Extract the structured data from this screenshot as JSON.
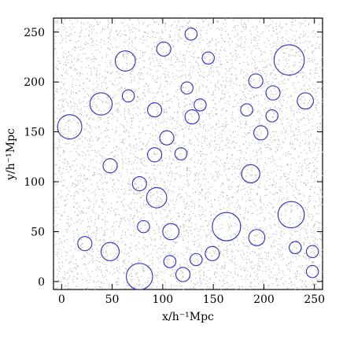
{
  "chart_data": {
    "type": "scatter",
    "title": "",
    "xlabel": "x/h⁻¹Mpc",
    "ylabel": "y/h⁻¹Mpc",
    "xlim": [
      -8,
      258
    ],
    "ylim": [
      -8,
      264
    ],
    "x_ticks": [
      0,
      50,
      100,
      150,
      200,
      250
    ],
    "y_ticks": [
      0,
      50,
      100,
      150,
      200,
      250
    ],
    "x_tick_labels": [
      "0",
      "50",
      "100",
      "150",
      "200",
      "250"
    ],
    "y_tick_labels": [
      "0",
      "50",
      "100",
      "150",
      "200",
      "250"
    ],
    "grid": false,
    "legend": false,
    "colors": {
      "galaxies": "#b3b3b3",
      "voids": "#2c2cc8",
      "axes": "#000000"
    },
    "series": [
      {
        "type": "circles",
        "points": [
          {
            "x": 128,
            "y": 248,
            "r": 6
          },
          {
            "x": 101,
            "y": 233,
            "r": 7
          },
          {
            "x": 145,
            "y": 224,
            "r": 6
          },
          {
            "x": 63,
            "y": 221,
            "r": 10
          },
          {
            "x": 225,
            "y": 222,
            "r": 15
          },
          {
            "x": 192,
            "y": 201,
            "r": 7
          },
          {
            "x": 124,
            "y": 194,
            "r": 6
          },
          {
            "x": 66,
            "y": 186,
            "r": 6
          },
          {
            "x": 209,
            "y": 189,
            "r": 7
          },
          {
            "x": 39,
            "y": 178,
            "r": 11
          },
          {
            "x": 241,
            "y": 181,
            "r": 8
          },
          {
            "x": 137,
            "y": 177,
            "r": 6
          },
          {
            "x": 92,
            "y": 172,
            "r": 7
          },
          {
            "x": 183,
            "y": 172,
            "r": 6
          },
          {
            "x": 208,
            "y": 166,
            "r": 6
          },
          {
            "x": 129,
            "y": 165,
            "r": 7
          },
          {
            "x": 8,
            "y": 155,
            "r": 12
          },
          {
            "x": 197,
            "y": 149,
            "r": 7
          },
          {
            "x": 104,
            "y": 144,
            "r": 7
          },
          {
            "x": 92,
            "y": 127,
            "r": 7
          },
          {
            "x": 118,
            "y": 128,
            "r": 6
          },
          {
            "x": 48,
            "y": 116,
            "r": 7
          },
          {
            "x": 187,
            "y": 108,
            "r": 9
          },
          {
            "x": 77,
            "y": 98,
            "r": 7
          },
          {
            "x": 94,
            "y": 84,
            "r": 10
          },
          {
            "x": 227,
            "y": 67,
            "r": 13
          },
          {
            "x": 163,
            "y": 55,
            "r": 14
          },
          {
            "x": 81,
            "y": 55,
            "r": 6
          },
          {
            "x": 108,
            "y": 50,
            "r": 8
          },
          {
            "x": 193,
            "y": 44,
            "r": 8
          },
          {
            "x": 23,
            "y": 38,
            "r": 7
          },
          {
            "x": 48,
            "y": 30,
            "r": 9
          },
          {
            "x": 231,
            "y": 34,
            "r": 6
          },
          {
            "x": 248,
            "y": 30,
            "r": 6
          },
          {
            "x": 149,
            "y": 28,
            "r": 7
          },
          {
            "x": 133,
            "y": 22,
            "r": 6
          },
          {
            "x": 107,
            "y": 20,
            "r": 6
          },
          {
            "x": 248,
            "y": 10,
            "r": 6
          },
          {
            "x": 120,
            "y": 7,
            "r": 7
          },
          {
            "x": 77,
            "y": 5,
            "r": 13
          }
        ]
      }
    ]
  }
}
